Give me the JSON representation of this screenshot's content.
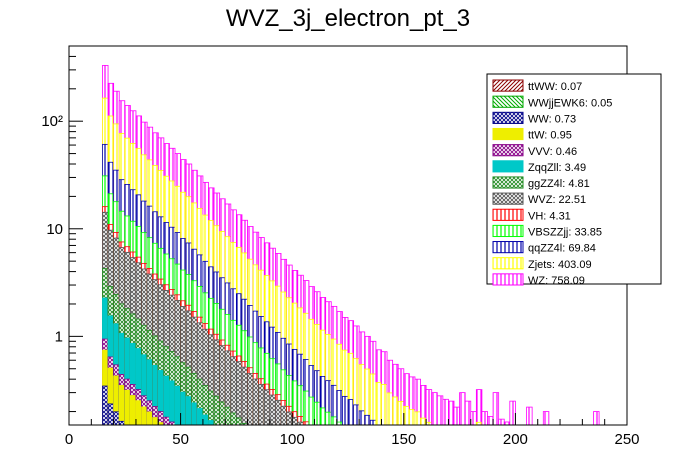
{
  "chart_data": {
    "type": "stacked-histogram",
    "title": "WVZ_3j_electron_pt_3",
    "xlabel": "",
    "ylabel": "",
    "xlim": [
      0,
      250
    ],
    "ylog": true,
    "ylim": [
      0.15,
      500
    ],
    "x_ticks": [
      0,
      50,
      100,
      150,
      200,
      250
    ],
    "y_ticks": [
      {
        "value": 1,
        "label": "1"
      },
      {
        "value": 10,
        "label": "10"
      },
      {
        "value": 100,
        "label": "10²"
      }
    ],
    "bin_width": 2.5,
    "bin_start": 15,
    "totals": [
      330,
      225,
      190,
      155,
      140,
      125,
      112,
      98,
      88,
      78,
      70,
      62,
      56,
      50,
      44,
      40,
      35,
      31,
      27,
      24,
      21.5,
      19,
      17,
      15,
      13.5,
      12,
      10.5,
      9.3,
      8.3,
      7.4,
      6.6,
      5.9,
      5.2,
      4.6,
      4.1,
      3.7,
      3.3,
      2.9,
      2.6,
      2.3,
      2.1,
      1.9,
      1.7,
      1.5,
      1.4,
      1.25,
      1.1,
      1.0,
      0.9,
      0.75,
      0.72,
      0.6,
      0.55,
      0.5,
      0.45,
      0.42,
      0.4,
      0.35,
      0.32,
      0.3,
      0.28,
      0.26,
      0.25,
      0.22,
      0.3,
      0.25,
      0.2,
      0.32,
      0.2,
      0.18,
      0.3,
      0.17,
      0.16,
      0.25,
      0.15,
      0.15,
      0.22,
      0.15,
      0.15,
      0.2,
      0.15,
      0,
      0,
      0,
      0,
      0,
      0,
      0,
      0.2,
      0.15
    ],
    "series": [
      {
        "name": "ttWW",
        "value": "0.07",
        "color": "#8B0000",
        "pattern": "diag-right",
        "fraction": 8e-05
      },
      {
        "name": "WWjjEWK6",
        "value": "0.05",
        "color": "#00AA00",
        "pattern": "diag-left",
        "fraction": 6e-05
      },
      {
        "name": "WW",
        "value": "0.73",
        "color": "#000088",
        "pattern": "cross",
        "fraction": 0.0009
      },
      {
        "name": "ttW",
        "value": "0.95",
        "color": "#EEEE00",
        "pattern": "solid",
        "fraction": 0.0012
      },
      {
        "name": "VVV",
        "value": "0.46",
        "color": "#880088",
        "pattern": "cross",
        "fraction": 0.0006
      },
      {
        "name": "ZqqZll",
        "value": "3.49",
        "color": "#00C8C8",
        "pattern": "solid",
        "fraction": 0.004
      },
      {
        "name": "ggZZ4l",
        "value": "4.81",
        "color": "#228B22",
        "pattern": "cross",
        "fraction": 0.006
      },
      {
        "name": "WVZ",
        "value": "22.51",
        "color": "#555555",
        "pattern": "cross",
        "fraction": 0.03
      },
      {
        "name": "VH",
        "value": "4.31",
        "color": "#FF0000",
        "pattern": "vertical",
        "fraction": 0.0055
      },
      {
        "name": "VBSZZjj",
        "value": "33.85",
        "color": "#00FF00",
        "pattern": "vertical",
        "fraction": 0.045
      },
      {
        "name": "qqZZ4l",
        "value": "69.84",
        "color": "#0000AA",
        "pattern": "vertical",
        "fraction": 0.09
      },
      {
        "name": "Zjets",
        "value": "403.09",
        "color": "#FFFF00",
        "pattern": "vertical",
        "fraction": 0.31
      },
      {
        "name": "WZ",
        "value": "758.09",
        "color": "#FF00FF",
        "pattern": "vertical",
        "fraction": 0.5
      }
    ],
    "legend_position": "top-right"
  }
}
